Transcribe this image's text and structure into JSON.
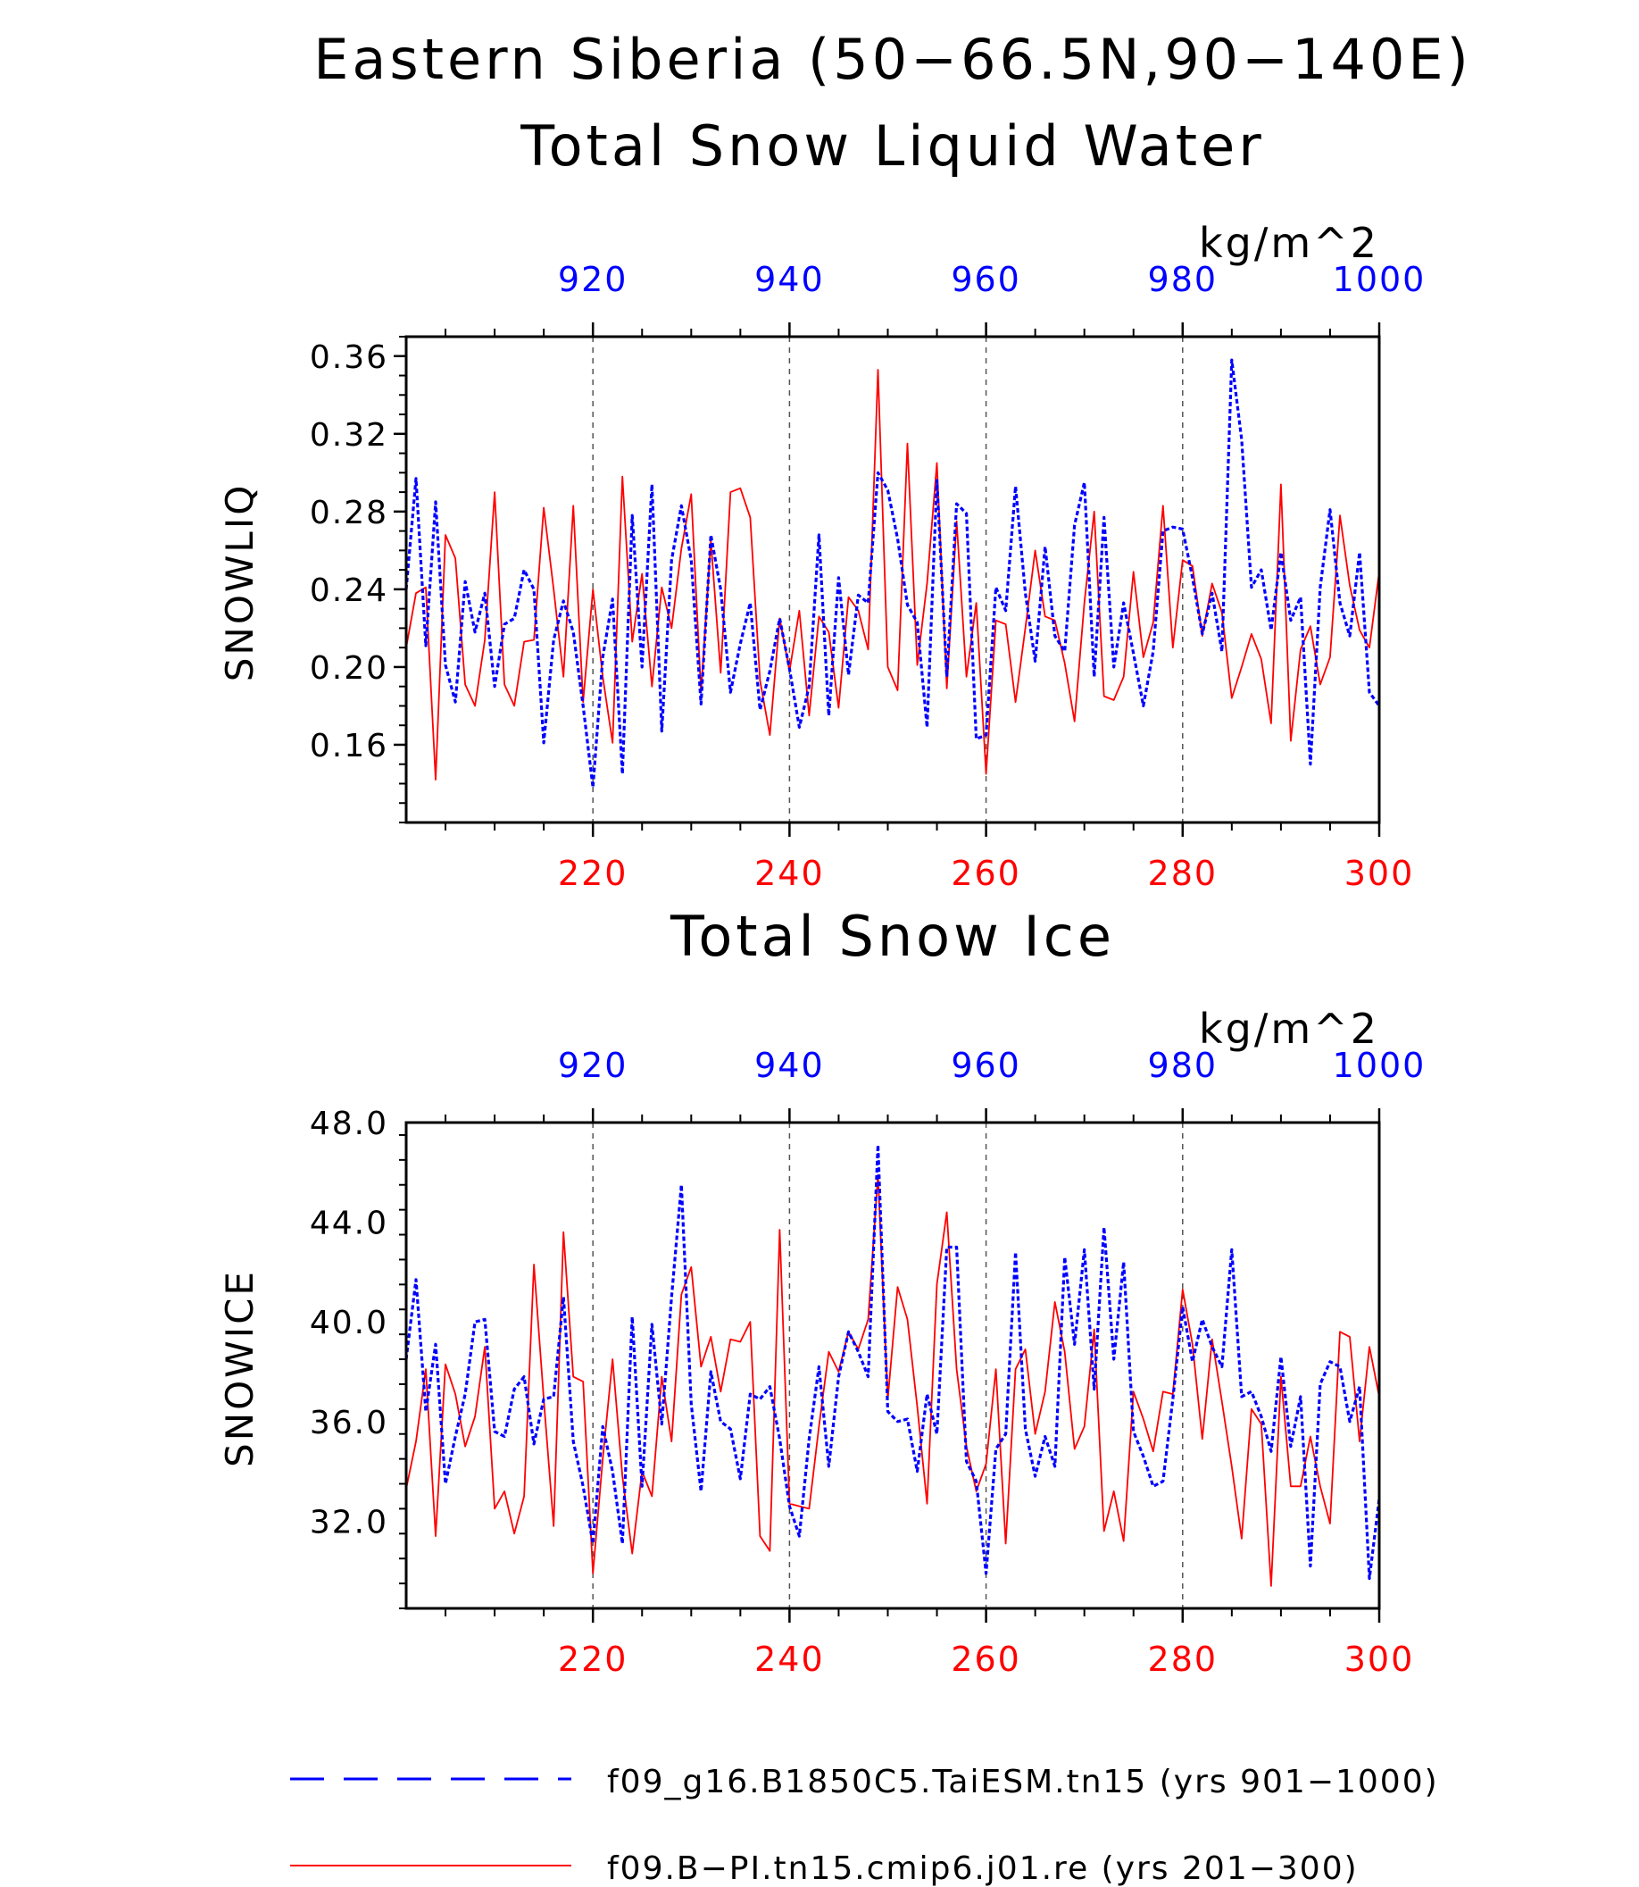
{
  "figure": {
    "title_line1": "Eastern Siberia (50−66.5N,90−140E)",
    "title_line2": "Total Snow Liquid Water"
  },
  "colors": {
    "bottom_axis": "#ff0000",
    "top_axis": "#0000ff",
    "axes": "#000000"
  },
  "chart_data": [
    {
      "type": "line",
      "title": "Total Snow Liquid Water",
      "ylabel": "SNOWLIQ",
      "units": "kg/m^2",
      "ylim": [
        0.12,
        0.37
      ],
      "yticks": [
        "0.16",
        "0.20",
        "0.24",
        "0.28",
        "0.32",
        "0.36"
      ],
      "xlim_bottom": [
        201,
        300
      ],
      "xticks_bottom": [
        "220",
        "240",
        "260",
        "280",
        "300"
      ],
      "xlim_top": [
        901,
        1000
      ],
      "xticks_top": [
        "920",
        "940",
        "960",
        "980",
        "1000"
      ],
      "grid": "vertical dashed at major ticks",
      "series": [
        {
          "name": "f09.B−PI.tn15.cmip6.j01.re (yrs 201−300)",
          "style": "solid",
          "color": "#ff0000",
          "axis": "bottom",
          "x": [
            201,
            202,
            203,
            204,
            205,
            206,
            207,
            208,
            209,
            210,
            211,
            212,
            213,
            214,
            215,
            216,
            217,
            218,
            219,
            220,
            221,
            222,
            223,
            224,
            225,
            226,
            227,
            228,
            229,
            230,
            231,
            232,
            233,
            234,
            235,
            236,
            237,
            238,
            239,
            240,
            241,
            242,
            243,
            244,
            245,
            246,
            247,
            248,
            249,
            250,
            251,
            252,
            253,
            254,
            255,
            256,
            257,
            258,
            259,
            260,
            261,
            262,
            263,
            264,
            265,
            266,
            267,
            268,
            269,
            270,
            271,
            272,
            273,
            274,
            275,
            276,
            277,
            278,
            279,
            280,
            281,
            282,
            283,
            284,
            285,
            286,
            287,
            288,
            289,
            290,
            291,
            292,
            293,
            294,
            295,
            296,
            297,
            298,
            299,
            300
          ],
          "values": [
            0.21,
            0.238,
            0.241,
            0.142,
            0.268,
            0.256,
            0.191,
            0.18,
            0.214,
            0.29,
            0.191,
            0.18,
            0.213,
            0.214,
            0.282,
            0.24,
            0.195,
            0.283,
            0.182,
            0.24,
            0.195,
            0.161,
            0.298,
            0.213,
            0.248,
            0.19,
            0.241,
            0.22,
            0.261,
            0.289,
            0.187,
            0.265,
            0.197,
            0.29,
            0.292,
            0.277,
            0.193,
            0.165,
            0.225,
            0.198,
            0.229,
            0.175,
            0.226,
            0.218,
            0.179,
            0.236,
            0.229,
            0.209,
            0.353,
            0.2,
            0.188,
            0.315,
            0.201,
            0.243,
            0.305,
            0.189,
            0.275,
            0.195,
            0.233,
            0.145,
            0.224,
            0.222,
            0.182,
            0.22,
            0.26,
            0.226,
            0.224,
            0.202,
            0.172,
            0.233,
            0.28,
            0.185,
            0.183,
            0.195,
            0.249,
            0.205,
            0.223,
            0.283,
            0.21,
            0.255,
            0.252,
            0.216,
            0.243,
            0.228,
            0.184,
            0.2,
            0.217,
            0.204,
            0.171,
            0.294,
            0.162,
            0.209,
            0.221,
            0.191,
            0.205,
            0.278,
            0.242,
            0.219,
            0.21,
            0.249
          ]
        },
        {
          "name": "f09_g16.B1850C5.TaiESM.tn15 (yrs 901−1000)",
          "style": "dashed",
          "color": "#0000ff",
          "axis": "top",
          "x": [
            901,
            902,
            903,
            904,
            905,
            906,
            907,
            908,
            909,
            910,
            911,
            912,
            913,
            914,
            915,
            916,
            917,
            918,
            919,
            920,
            921,
            922,
            923,
            924,
            925,
            926,
            927,
            928,
            929,
            930,
            931,
            932,
            933,
            934,
            935,
            936,
            937,
            938,
            939,
            940,
            941,
            942,
            943,
            944,
            945,
            946,
            947,
            948,
            949,
            950,
            951,
            952,
            953,
            954,
            955,
            956,
            957,
            958,
            959,
            960,
            961,
            962,
            963,
            964,
            965,
            966,
            967,
            968,
            969,
            970,
            971,
            972,
            973,
            974,
            975,
            976,
            977,
            978,
            979,
            980,
            981,
            982,
            983,
            984,
            985,
            986,
            987,
            988,
            989,
            990,
            991,
            992,
            993,
            994,
            995,
            996,
            997,
            998,
            999,
            1000
          ],
          "values": [
            0.24,
            0.297,
            0.211,
            0.285,
            0.201,
            0.182,
            0.244,
            0.218,
            0.238,
            0.19,
            0.222,
            0.225,
            0.25,
            0.24,
            0.161,
            0.214,
            0.234,
            0.218,
            0.18,
            0.138,
            0.205,
            0.235,
            0.145,
            0.278,
            0.2,
            0.294,
            0.167,
            0.255,
            0.283,
            0.255,
            0.181,
            0.268,
            0.24,
            0.187,
            0.212,
            0.233,
            0.178,
            0.198,
            0.225,
            0.199,
            0.169,
            0.19,
            0.268,
            0.175,
            0.246,
            0.196,
            0.237,
            0.233,
            0.3,
            0.291,
            0.266,
            0.232,
            0.223,
            0.169,
            0.296,
            0.195,
            0.284,
            0.279,
            0.163,
            0.165,
            0.241,
            0.229,
            0.293,
            0.238,
            0.203,
            0.262,
            0.216,
            0.208,
            0.273,
            0.295,
            0.195,
            0.277,
            0.2,
            0.233,
            0.207,
            0.18,
            0.208,
            0.27,
            0.272,
            0.271,
            0.246,
            0.217,
            0.238,
            0.208,
            0.358,
            0.317,
            0.241,
            0.25,
            0.219,
            0.259,
            0.224,
            0.236,
            0.15,
            0.241,
            0.281,
            0.233,
            0.216,
            0.259,
            0.187,
            0.18
          ]
        }
      ]
    },
    {
      "type": "line",
      "title": "Total Snow Ice",
      "ylabel": "SNOWICE",
      "units": "kg/m^2",
      "ylim": [
        28.5,
        48
      ],
      "yticks": [
        "32.0",
        "36.0",
        "40.0",
        "44.0",
        "48.0"
      ],
      "xlim_bottom": [
        201,
        300
      ],
      "xticks_bottom": [
        "220",
        "240",
        "260",
        "280",
        "300"
      ],
      "xlim_top": [
        901,
        1000
      ],
      "xticks_top": [
        "920",
        "940",
        "960",
        "980",
        "1000"
      ],
      "grid": "vertical dashed at major ticks",
      "series": [
        {
          "name": "f09.B−PI.tn15.cmip6.j01.re (yrs 201−300)",
          "style": "solid",
          "color": "#ff0000",
          "axis": "bottom",
          "x": [
            201,
            202,
            203,
            204,
            205,
            206,
            207,
            208,
            209,
            210,
            211,
            212,
            213,
            214,
            215,
            216,
            217,
            218,
            219,
            220,
            221,
            222,
            223,
            224,
            225,
            226,
            227,
            228,
            229,
            230,
            231,
            232,
            233,
            234,
            235,
            236,
            237,
            238,
            239,
            240,
            241,
            242,
            243,
            244,
            245,
            246,
            247,
            248,
            249,
            250,
            251,
            252,
            253,
            254,
            255,
            256,
            257,
            258,
            259,
            260,
            261,
            262,
            263,
            264,
            265,
            266,
            267,
            268,
            269,
            270,
            271,
            272,
            273,
            274,
            275,
            276,
            277,
            278,
            279,
            280,
            281,
            282,
            283,
            284,
            285,
            286,
            287,
            288,
            289,
            290,
            291,
            292,
            293,
            294,
            295,
            296,
            297,
            298,
            299,
            300
          ],
          "values": [
            33.3,
            35.2,
            38.1,
            31.4,
            38.3,
            37.1,
            35.0,
            36.2,
            39.0,
            32.5,
            33.2,
            31.5,
            33.0,
            42.3,
            36.9,
            31.8,
            43.6,
            37.8,
            37.6,
            29.9,
            34.5,
            38.5,
            33.8,
            30.7,
            34.0,
            33.0,
            37.8,
            35.2,
            41.1,
            42.2,
            38.2,
            39.4,
            37.2,
            39.3,
            39.2,
            40.0,
            31.4,
            30.8,
            43.7,
            32.7,
            32.6,
            32.5,
            35.8,
            38.8,
            38.0,
            39.6,
            38.9,
            40.1,
            45.9,
            36.9,
            41.4,
            40.1,
            36.6,
            32.7,
            41.5,
            44.4,
            38.1,
            35.0,
            33.2,
            34.3,
            38.1,
            31.1,
            38.1,
            38.9,
            35.5,
            37.2,
            40.8,
            38.8,
            34.9,
            35.8,
            39.7,
            31.6,
            33.2,
            31.2,
            37.2,
            36.1,
            34.8,
            37.2,
            37.1,
            41.3,
            39.1,
            35.3,
            39.3,
            36.8,
            34.2,
            31.3,
            36.5,
            35.9,
            29.4,
            37.8,
            33.4,
            33.4,
            35.4,
            33.4,
            31.9,
            39.6,
            39.4,
            35.2,
            39.0,
            37.0
          ]
        },
        {
          "name": "f09_g16.B1850C5.TaiESM.tn15 (yrs 901−1000)",
          "style": "dashed",
          "color": "#0000ff",
          "axis": "top",
          "x": [
            901,
            902,
            903,
            904,
            905,
            906,
            907,
            908,
            909,
            910,
            911,
            912,
            913,
            914,
            915,
            916,
            917,
            918,
            919,
            920,
            921,
            922,
            923,
            924,
            925,
            926,
            927,
            928,
            929,
            930,
            931,
            932,
            933,
            934,
            935,
            936,
            937,
            938,
            939,
            940,
            941,
            942,
            943,
            944,
            945,
            946,
            947,
            948,
            949,
            950,
            951,
            952,
            953,
            954,
            955,
            956,
            957,
            958,
            959,
            960,
            961,
            962,
            963,
            964,
            965,
            966,
            967,
            968,
            969,
            970,
            971,
            972,
            973,
            974,
            975,
            976,
            977,
            978,
            979,
            980,
            981,
            982,
            983,
            984,
            985,
            986,
            987,
            988,
            989,
            990,
            991,
            992,
            993,
            994,
            995,
            996,
            997,
            998,
            999,
            1000
          ],
          "values": [
            38.5,
            41.7,
            36.4,
            39.1,
            33.5,
            35.4,
            37.1,
            40.0,
            40.1,
            35.6,
            35.4,
            37.3,
            37.8,
            35.1,
            36.9,
            37.0,
            41.0,
            35.2,
            33.4,
            31.1,
            35.8,
            34.0,
            31.1,
            40.2,
            33.4,
            39.9,
            35.9,
            41.0,
            45.5,
            36.7,
            33.2,
            38.0,
            36.0,
            35.7,
            33.7,
            37.1,
            36.9,
            37.4,
            35.3,
            32.6,
            31.4,
            35.3,
            38.2,
            34.2,
            37.8,
            39.6,
            38.8,
            37.8,
            47.1,
            36.4,
            36.0,
            36.1,
            34.0,
            37.1,
            35.5,
            43.0,
            43.0,
            34.4,
            33.6,
            29.9,
            34.9,
            35.5,
            42.8,
            35.7,
            33.8,
            35.4,
            34.2,
            42.6,
            39.1,
            42.9,
            37.3,
            43.8,
            38.5,
            42.4,
            35.6,
            34.6,
            33.4,
            33.6,
            36.9,
            40.6,
            38.4,
            40.1,
            39.0,
            38.2,
            42.9,
            37.0,
            37.2,
            36.2,
            34.8,
            38.6,
            35.0,
            37.0,
            30.2,
            37.5,
            38.4,
            38.2,
            36.0,
            37.4,
            29.7,
            32.9
          ]
        }
      ]
    }
  ],
  "legend": {
    "items": [
      {
        "label": "f09_g16.B1850C5.TaiESM.tn15 (yrs 901−1000)",
        "style": "dashed",
        "color": "#0000ff"
      },
      {
        "label": "f09.B−PI.tn15.cmip6.j01.re (yrs 201−300)",
        "style": "solid",
        "color": "#ff0000"
      }
    ]
  }
}
